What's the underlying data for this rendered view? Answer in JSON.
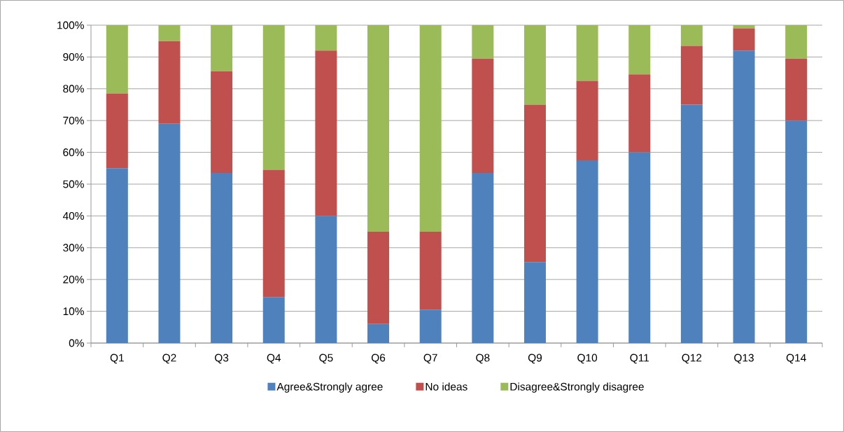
{
  "chart_data": {
    "type": "bar",
    "stacked": true,
    "categories": [
      "Q1",
      "Q2",
      "Q3",
      "Q4",
      "Q5",
      "Q6",
      "Q7",
      "Q8",
      "Q9",
      "Q10",
      "Q11",
      "Q12",
      "Q13",
      "Q14"
    ],
    "series": [
      {
        "name": "Agree&Strongly agree",
        "color": "#4f81bd",
        "values": [
          55,
          69,
          53.5,
          14.5,
          40,
          6,
          10.5,
          53.5,
          25.5,
          57.5,
          60,
          75,
          92,
          70
        ]
      },
      {
        "name": "No ideas",
        "color": "#c0504d",
        "values": [
          23.5,
          26,
          32,
          40,
          52,
          29,
          24.5,
          36,
          49.5,
          25,
          24.5,
          18.5,
          7,
          19.5
        ]
      },
      {
        "name": "Disagree&Strongly disagree",
        "color": "#9bbb59",
        "values": [
          21.5,
          5,
          14.5,
          45.5,
          8,
          65,
          65,
          10.5,
          25,
          17.5,
          15.5,
          6.5,
          1,
          10.5
        ]
      }
    ],
    "ylim": [
      0,
      100
    ],
    "yticks": [
      {
        "value": 0,
        "label": "0%"
      },
      {
        "value": 10,
        "label": "10%"
      },
      {
        "value": 20,
        "label": "20%"
      },
      {
        "value": 30,
        "label": "30%"
      },
      {
        "value": 40,
        "label": "40%"
      },
      {
        "value": 50,
        "label": "50%"
      },
      {
        "value": 60,
        "label": "60%"
      },
      {
        "value": 70,
        "label": "70%"
      },
      {
        "value": 80,
        "label": "80%"
      },
      {
        "value": 90,
        "label": "90%"
      },
      {
        "value": 100,
        "label": "100%"
      }
    ],
    "grid": "y",
    "legend": "bottom"
  }
}
